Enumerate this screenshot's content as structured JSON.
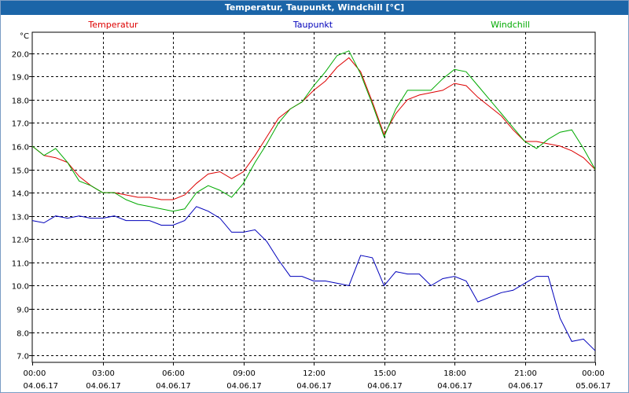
{
  "window": {
    "title": "Temperatur, Taupunkt, Windchill [°C]"
  },
  "chart_data": {
    "type": "line",
    "title": "Temperatur, Taupunkt, Windchill [°C]",
    "ylabel": "°C",
    "ylim": [
      6.7,
      20.9
    ],
    "xlim": [
      0,
      24
    ],
    "grid": true,
    "yticks": [
      7.0,
      8.0,
      9.0,
      10.0,
      11.0,
      12.0,
      13.0,
      14.0,
      15.0,
      16.0,
      17.0,
      18.0,
      19.0,
      20.0
    ],
    "xticks": [
      {
        "h": 0,
        "time": "00:00",
        "date": "04.06.17"
      },
      {
        "h": 3,
        "time": "03:00",
        "date": "04.06.17"
      },
      {
        "h": 6,
        "time": "06:00",
        "date": "04.06.17"
      },
      {
        "h": 9,
        "time": "09:00",
        "date": "04.06.17"
      },
      {
        "h": 12,
        "time": "12:00",
        "date": "04.06.17"
      },
      {
        "h": 15,
        "time": "15:00",
        "date": "04.06.17"
      },
      {
        "h": 18,
        "time": "18:00",
        "date": "04.06.17"
      },
      {
        "h": 21,
        "time": "21:00",
        "date": "04.06.17"
      },
      {
        "h": 24,
        "time": "00:00",
        "date": "05.06.17"
      }
    ],
    "x": [
      0,
      0.5,
      1,
      1.5,
      2,
      2.5,
      3,
      3.5,
      4,
      4.5,
      5,
      5.5,
      6,
      6.5,
      7,
      7.5,
      8,
      8.5,
      9,
      9.5,
      10,
      10.5,
      11,
      11.5,
      12,
      12.5,
      13,
      13.5,
      14,
      14.5,
      15,
      15.5,
      16,
      16.5,
      17,
      17.5,
      18,
      18.5,
      19,
      19.5,
      20,
      20.5,
      21,
      21.5,
      22,
      22.5,
      23,
      23.5,
      24
    ],
    "series": [
      {
        "name": "Temperatur",
        "color": "#dd0000",
        "values": [
          16.0,
          15.6,
          15.5,
          15.3,
          14.7,
          14.3,
          14.0,
          14.0,
          13.9,
          13.8,
          13.8,
          13.7,
          13.7,
          13.9,
          14.4,
          14.8,
          14.9,
          14.6,
          14.9,
          15.6,
          16.4,
          17.2,
          17.6,
          17.9,
          18.4,
          18.8,
          19.4,
          19.8,
          19.2,
          17.9,
          16.5,
          17.4,
          18.0,
          18.2,
          18.3,
          18.4,
          18.7,
          18.6,
          18.1,
          17.7,
          17.3,
          16.7,
          16.2,
          16.2,
          16.1,
          16.0,
          15.8,
          15.5,
          15.0
        ]
      },
      {
        "name": "Taupunkt",
        "color": "#0000bb",
        "values": [
          12.8,
          12.7,
          13.0,
          12.9,
          13.0,
          12.9,
          12.9,
          13.0,
          12.8,
          12.8,
          12.8,
          12.6,
          12.6,
          12.8,
          13.4,
          13.2,
          12.9,
          12.3,
          12.3,
          12.4,
          11.9,
          11.1,
          10.4,
          10.4,
          10.2,
          10.2,
          10.1,
          10.0,
          11.3,
          11.2,
          10.0,
          10.6,
          10.5,
          10.5,
          10.0,
          10.3,
          10.4,
          10.2,
          9.3,
          9.5,
          9.7,
          9.8,
          10.1,
          10.4,
          10.4,
          8.6,
          7.6,
          7.7,
          7.2
        ]
      },
      {
        "name": "Windchill",
        "color": "#00aa00",
        "values": [
          16.0,
          15.6,
          15.9,
          15.3,
          14.5,
          14.3,
          14.0,
          14.0,
          13.7,
          13.5,
          13.4,
          13.3,
          13.2,
          13.3,
          14.0,
          14.3,
          14.1,
          13.8,
          14.4,
          15.3,
          16.1,
          17.0,
          17.6,
          17.9,
          18.6,
          19.2,
          19.9,
          20.1,
          19.1,
          17.8,
          16.4,
          17.6,
          18.4,
          18.4,
          18.4,
          18.9,
          19.3,
          19.2,
          18.6,
          18.0,
          17.4,
          16.8,
          16.2,
          15.9,
          16.3,
          16.6,
          16.7,
          15.9,
          15.0
        ]
      }
    ]
  }
}
